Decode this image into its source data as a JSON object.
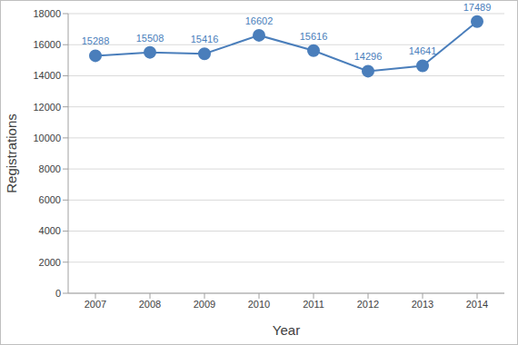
{
  "chart_data": {
    "type": "line",
    "x_label": "Year",
    "y_label": "Registrations",
    "categories": [
      "2007",
      "2008",
      "2009",
      "2010",
      "2011",
      "2012",
      "2013",
      "2014"
    ],
    "values": [
      15288,
      15508,
      15416,
      16602,
      15616,
      14296,
      14641,
      17489
    ],
    "color": "#4a7ebb",
    "ylim": [
      0,
      18000
    ],
    "yticks": [
      0,
      2000,
      4000,
      6000,
      8000,
      10000,
      12000,
      14000,
      16000,
      18000
    ],
    "grid": true,
    "data_labels": true,
    "marker": "circle"
  }
}
